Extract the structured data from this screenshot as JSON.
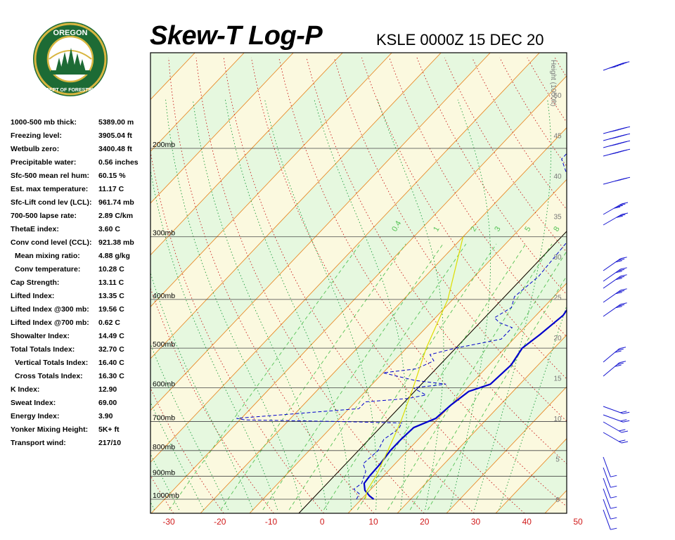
{
  "header": {
    "title": "Skew-T Log-P",
    "station": "KSLE 0000Z 15 DEC 20"
  },
  "logo": {
    "top_text": "OREGON",
    "bottom_text": "DEPARTMENT OF FORESTRY"
  },
  "indices": [
    {
      "label": "1000-500 mb thick:",
      "value": "5389.00 m",
      "indent": false
    },
    {
      "label": "Freezing level:",
      "value": "3905.04 ft",
      "indent": false
    },
    {
      "label": "Wetbulb zero:",
      "value": "3400.48 ft",
      "indent": false
    },
    {
      "label": "Precipitable water:",
      "value": "0.56 inches",
      "indent": false
    },
    {
      "label": "Sfc-500 mean rel hum:",
      "value": "60.15 %",
      "indent": false
    },
    {
      "label": "Est. max temperature:",
      "value": "11.17 C",
      "indent": false
    },
    {
      "label": "Sfc-Lift cond lev (LCL):",
      "value": "961.74 mb",
      "indent": false
    },
    {
      "label": "700-500 lapse rate:",
      "value": "2.89 C/km",
      "indent": false
    },
    {
      "label": "ThetaE index:",
      "value": "3.60 C",
      "indent": false
    },
    {
      "label": "Conv cond level (CCL):",
      "value": "921.38 mb",
      "indent": false
    },
    {
      "label": "Mean mixing ratio:",
      "value": "4.88 g/kg",
      "indent": true
    },
    {
      "label": "Conv temperature:",
      "value": "10.28 C",
      "indent": true
    },
    {
      "label": "Cap Strength:",
      "value": "13.11 C",
      "indent": false
    },
    {
      "label": "Lifted Index:",
      "value": "13.35 C",
      "indent": false
    },
    {
      "label": "Lifted Index @300 mb:",
      "value": "19.56 C",
      "indent": false
    },
    {
      "label": "Lifted Index @700 mb:",
      "value": "0.62 C",
      "indent": false
    },
    {
      "label": "Showalter Index:",
      "value": "14.49 C",
      "indent": false
    },
    {
      "label": "Total Totals Index:",
      "value": "32.70 C",
      "indent": false
    },
    {
      "label": "Vertical Totals Index:",
      "value": "16.40 C",
      "indent": true
    },
    {
      "label": "Cross Totals Index:",
      "value": "16.30 C",
      "indent": true
    },
    {
      "label": "K Index:",
      "value": "12.90",
      "indent": false
    },
    {
      "label": "Sweat Index:",
      "value": "69.00",
      "indent": false
    },
    {
      "label": "Energy Index:",
      "value": "3.90",
      "indent": false
    },
    {
      "label": "Yonker Mixing Height:",
      "value": "5K+ ft",
      "indent": false
    },
    {
      "label": "Transport wind:",
      "value": "217/10",
      "indent": false
    }
  ],
  "chart_data": {
    "type": "line",
    "x_axis": {
      "label": "",
      "range": [
        -30,
        50
      ],
      "ticks": [
        -30,
        -20,
        -10,
        0,
        10,
        20,
        30,
        40,
        50
      ]
    },
    "pressure_levels": [
      {
        "p": 1000,
        "label": "1000mb"
      },
      {
        "p": 900,
        "label": "900mb"
      },
      {
        "p": 800,
        "label": "800mb"
      },
      {
        "p": 700,
        "label": "700mb"
      },
      {
        "p": 600,
        "label": "600mb"
      },
      {
        "p": 500,
        "label": "500mb"
      },
      {
        "p": 400,
        "label": "400mb"
      },
      {
        "p": 300,
        "label": "300mb"
      },
      {
        "p": 200,
        "label": "200mb"
      }
    ],
    "height_axis": {
      "label": "Height (1000ft)",
      "ticks": [
        0,
        5,
        10,
        15,
        20,
        25,
        30,
        35,
        40,
        45,
        50
      ]
    },
    "mixing_ratio_labels": [
      "0.4",
      "1",
      "2",
      "3",
      "5",
      "8"
    ],
    "series": [
      {
        "kind": "temperature",
        "color": "#0000cc",
        "points": [
          [
            12.5,
            1000
          ],
          [
            11.0,
            985
          ],
          [
            9.0,
            960
          ],
          [
            7.5,
            930
          ],
          [
            7.2,
            900
          ],
          [
            7.0,
            850
          ],
          [
            6.5,
            800
          ],
          [
            6.5,
            760
          ],
          [
            6.8,
            720
          ],
          [
            9.5,
            690
          ],
          [
            10.0,
            650
          ],
          [
            11.0,
            610
          ],
          [
            14.0,
            590
          ],
          [
            14.5,
            540
          ],
          [
            13.5,
            500
          ],
          [
            14.5,
            470
          ],
          [
            15.5,
            430
          ],
          [
            14.0,
            380
          ],
          [
            8.5,
            310
          ],
          [
            0.0,
            250
          ],
          [
            -3.0,
            205
          ],
          [
            -1.5,
            190
          ],
          [
            2.0,
            155
          ],
          [
            3.5,
            120
          ],
          [
            6.5,
            100
          ]
        ]
      },
      {
        "kind": "dewpoint",
        "color": "#0000cc",
        "dashed": true,
        "points": [
          [
            9.0,
            1000
          ],
          [
            8.5,
            975
          ],
          [
            6.5,
            955
          ],
          [
            7.0,
            930
          ],
          [
            5.5,
            880
          ],
          [
            3.5,
            850
          ],
          [
            4.0,
            800
          ],
          [
            3.0,
            760
          ],
          [
            4.0,
            725
          ],
          [
            3.5,
            705
          ],
          [
            -10.0,
            700
          ],
          [
            -29.0,
            695
          ],
          [
            -31.0,
            690
          ],
          [
            -8.0,
            660
          ],
          [
            -8.0,
            640
          ],
          [
            0.0,
            630
          ],
          [
            3.0,
            620
          ],
          [
            -1.0,
            600
          ],
          [
            5.0,
            590
          ],
          [
            -2.0,
            580
          ],
          [
            -10.0,
            560
          ],
          [
            -4.0,
            550
          ],
          [
            -2.0,
            530
          ],
          [
            -4.0,
            515
          ],
          [
            0.0,
            500
          ],
          [
            7.5,
            480
          ],
          [
            7.5,
            455
          ],
          [
            4.0,
            445
          ],
          [
            2.0,
            435
          ],
          [
            3.5,
            415
          ],
          [
            2.0,
            395
          ],
          [
            3.0,
            360
          ],
          [
            2.0,
            300
          ],
          [
            -5.0,
            250
          ],
          [
            -15.0,
            210
          ],
          [
            -15.0,
            190
          ],
          [
            -12.0,
            140
          ],
          [
            -5.0,
            100
          ]
        ]
      },
      {
        "kind": "parcel",
        "color": "#dddd00",
        "points": [
          [
            10.8,
            1000
          ],
          [
            9.5,
            962
          ],
          [
            8.5,
            900
          ],
          [
            6.0,
            800
          ],
          [
            3.0,
            700
          ],
          [
            -1.0,
            600
          ],
          [
            -6.0,
            500
          ],
          [
            -11.0,
            400
          ],
          [
            -20.0,
            300
          ]
        ]
      }
    ]
  }
}
